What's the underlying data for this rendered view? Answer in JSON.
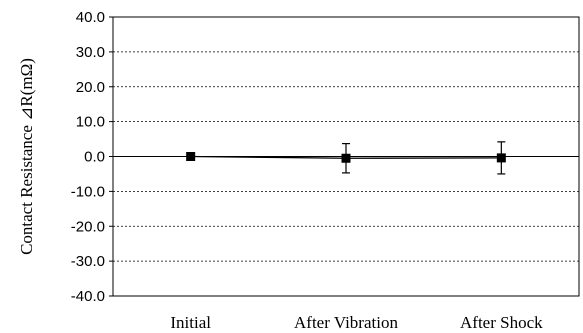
{
  "chart_data": {
    "type": "line",
    "categories": [
      "Initial",
      "After Vibration",
      "After Shock"
    ],
    "series": [
      {
        "values": [
          0.0,
          -0.5,
          -0.4
        ],
        "error": [
          0.0,
          4.2,
          4.6
        ]
      }
    ],
    "ylabel": "Contact Resistance ⊿R(mΩ)",
    "ylim": [
      -40,
      40
    ],
    "yticks": [
      40,
      30,
      20,
      10,
      0,
      -10,
      -20,
      -30,
      -40
    ],
    "ytick_labels": [
      "40.0",
      "30.0",
      "20.0",
      "10.0",
      "0.0",
      "-10.0",
      "-20.0",
      "-30.0",
      "-40.0"
    ],
    "grid": true,
    "grid_style": "dashed horizontal",
    "line_color": "#000000",
    "marker": "square"
  }
}
